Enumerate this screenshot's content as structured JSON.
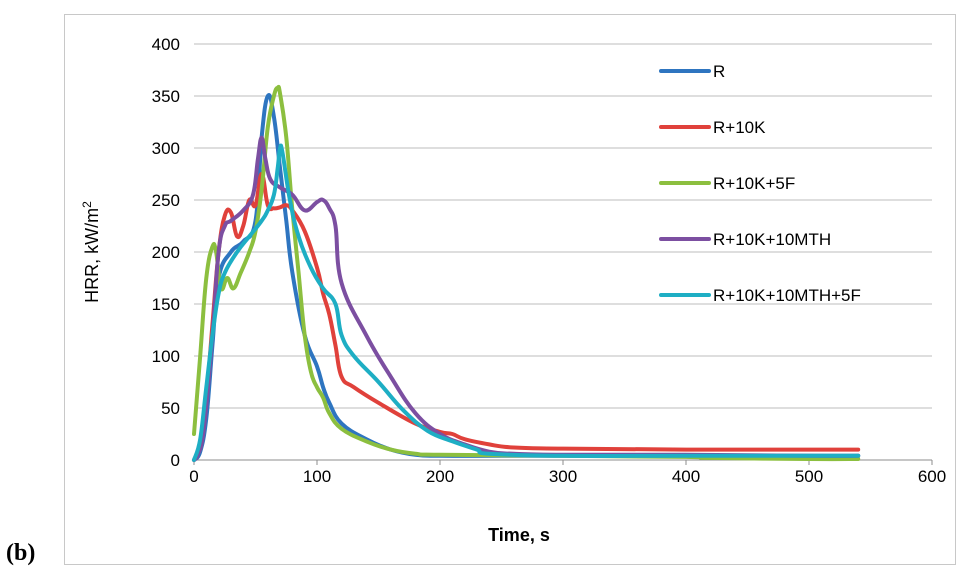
{
  "panel_label": "(b)",
  "chart_data": {
    "type": "line",
    "title": "",
    "xlabel": "Time, s",
    "ylabel": "HRR, kW/m",
    "ylabel_superscript": "2",
    "xlim": [
      0,
      600
    ],
    "ylim": [
      0,
      400
    ],
    "xticks": [
      0,
      100,
      200,
      300,
      400,
      500,
      600
    ],
    "yticks": [
      0,
      50,
      100,
      150,
      200,
      250,
      300,
      350,
      400
    ],
    "grid": "horizontal",
    "legend_position": "right",
    "series": [
      {
        "name": "R",
        "color": "#2e75c0",
        "points": [
          [
            0,
            0
          ],
          [
            5,
            8
          ],
          [
            10,
            40
          ],
          [
            15,
            110
          ],
          [
            20,
            175
          ],
          [
            30,
            200
          ],
          [
            40,
            210
          ],
          [
            50,
            230
          ],
          [
            55,
            310
          ],
          [
            60,
            350
          ],
          [
            65,
            330
          ],
          [
            70,
            280
          ],
          [
            75,
            230
          ],
          [
            80,
            180
          ],
          [
            90,
            120
          ],
          [
            100,
            90
          ],
          [
            105,
            70
          ],
          [
            110,
            55
          ],
          [
            120,
            35
          ],
          [
            140,
            20
          ],
          [
            160,
            10
          ],
          [
            180,
            5
          ],
          [
            200,
            4
          ],
          [
            250,
            4
          ],
          [
            300,
            4
          ],
          [
            400,
            4
          ],
          [
            500,
            4
          ],
          [
            540,
            4
          ]
        ]
      },
      {
        "name": "R+10K",
        "color": "#e0413b",
        "points": [
          [
            0,
            0
          ],
          [
            5,
            15
          ],
          [
            10,
            60
          ],
          [
            15,
            130
          ],
          [
            20,
            200
          ],
          [
            25,
            235
          ],
          [
            30,
            238
          ],
          [
            35,
            215
          ],
          [
            40,
            225
          ],
          [
            45,
            250
          ],
          [
            50,
            245
          ],
          [
            55,
            275
          ],
          [
            60,
            245
          ],
          [
            65,
            242
          ],
          [
            70,
            243
          ],
          [
            75,
            245
          ],
          [
            80,
            240
          ],
          [
            90,
            220
          ],
          [
            100,
            185
          ],
          [
            105,
            160
          ],
          [
            110,
            140
          ],
          [
            115,
            110
          ],
          [
            120,
            80
          ],
          [
            130,
            70
          ],
          [
            150,
            55
          ],
          [
            180,
            35
          ],
          [
            200,
            27
          ],
          [
            210,
            25
          ],
          [
            220,
            20
          ],
          [
            240,
            15
          ],
          [
            260,
            12
          ],
          [
            300,
            11
          ],
          [
            400,
            10
          ],
          [
            500,
            10
          ],
          [
            540,
            10
          ]
        ]
      },
      {
        "name": "R+10K+5F",
        "color": "#8cbf3f",
        "points": [
          [
            0,
            25
          ],
          [
            5,
            100
          ],
          [
            10,
            175
          ],
          [
            15,
            205
          ],
          [
            18,
            200
          ],
          [
            22,
            165
          ],
          [
            27,
            175
          ],
          [
            32,
            165
          ],
          [
            38,
            180
          ],
          [
            45,
            200
          ],
          [
            50,
            220
          ],
          [
            55,
            260
          ],
          [
            60,
            320
          ],
          [
            65,
            350
          ],
          [
            68,
            358
          ],
          [
            70,
            352
          ],
          [
            75,
            310
          ],
          [
            80,
            240
          ],
          [
            85,
            180
          ],
          [
            90,
            120
          ],
          [
            95,
            85
          ],
          [
            100,
            70
          ],
          [
            105,
            60
          ],
          [
            110,
            45
          ],
          [
            120,
            30
          ],
          [
            140,
            18
          ],
          [
            160,
            10
          ],
          [
            180,
            6
          ],
          [
            200,
            5
          ],
          [
            300,
            4
          ],
          [
            400,
            3
          ],
          [
            420,
            2
          ],
          [
            500,
            1
          ],
          [
            540,
            1
          ]
        ]
      },
      {
        "name": "R+10K+10MTH",
        "color": "#7c4fa1",
        "points": [
          [
            0,
            0
          ],
          [
            3,
            5
          ],
          [
            8,
            30
          ],
          [
            15,
            120
          ],
          [
            20,
            200
          ],
          [
            25,
            225
          ],
          [
            30,
            230
          ],
          [
            40,
            240
          ],
          [
            48,
            255
          ],
          [
            52,
            290
          ],
          [
            55,
            310
          ],
          [
            58,
            290
          ],
          [
            62,
            270
          ],
          [
            70,
            262
          ],
          [
            80,
            255
          ],
          [
            90,
            240
          ],
          [
            100,
            248
          ],
          [
            105,
            250
          ],
          [
            110,
            242
          ],
          [
            115,
            225
          ],
          [
            120,
            170
          ],
          [
            140,
            120
          ],
          [
            160,
            80
          ],
          [
            180,
            45
          ],
          [
            200,
            25
          ],
          [
            220,
            15
          ],
          [
            240,
            8
          ],
          [
            260,
            6
          ],
          [
            300,
            5
          ],
          [
            400,
            5
          ],
          [
            500,
            4
          ],
          [
            540,
            4
          ]
        ]
      },
      {
        "name": "R+10K+10MTH+5F",
        "color": "#1eaec4",
        "points": [
          [
            0,
            0
          ],
          [
            5,
            20
          ],
          [
            10,
            70
          ],
          [
            15,
            120
          ],
          [
            20,
            160
          ],
          [
            25,
            180
          ],
          [
            35,
            200
          ],
          [
            45,
            215
          ],
          [
            55,
            230
          ],
          [
            60,
            240
          ],
          [
            65,
            255
          ],
          [
            68,
            280
          ],
          [
            70,
            300
          ],
          [
            72,
            295
          ],
          [
            78,
            250
          ],
          [
            85,
            215
          ],
          [
            95,
            185
          ],
          [
            105,
            165
          ],
          [
            115,
            150
          ],
          [
            120,
            120
          ],
          [
            130,
            100
          ],
          [
            150,
            75
          ],
          [
            170,
            48
          ],
          [
            190,
            28
          ],
          [
            210,
            18
          ],
          [
            230,
            10
          ],
          [
            240,
            6
          ],
          [
            300,
            4
          ],
          [
            400,
            4
          ],
          [
            500,
            4
          ],
          [
            540,
            4
          ]
        ]
      }
    ]
  }
}
